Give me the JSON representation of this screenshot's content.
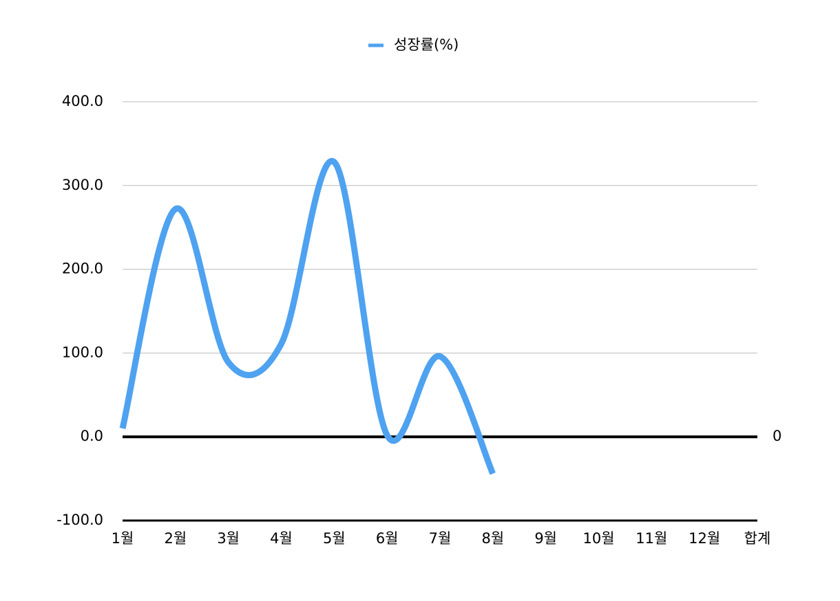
{
  "chart_data": {
    "type": "line",
    "categories": [
      "1월",
      "2월",
      "3월",
      "4월",
      "5월",
      "6월",
      "7월",
      "8월",
      "9월",
      "10월",
      "11월",
      "12월",
      "합계"
    ],
    "series": [
      {
        "name": "성장률(%)",
        "color": "#4ea2f0",
        "values": [
          10,
          272,
          89,
          111,
          328,
          2,
          96,
          -44,
          null,
          null,
          null,
          null,
          null
        ]
      }
    ],
    "ylim": [
      -100,
      400
    ],
    "yticks": [
      {
        "value": -100,
        "label": "-100.0"
      },
      {
        "value": 0,
        "label": "0.0"
      },
      {
        "value": 100,
        "label": "100.0"
      },
      {
        "value": 200,
        "label": "200.0"
      },
      {
        "value": 300,
        "label": "300.0"
      },
      {
        "value": 400,
        "label": "400.0"
      }
    ],
    "y2lim": [
      -100,
      400
    ],
    "y2ticks": [
      0
    ],
    "grid": true,
    "smooth": true,
    "legend": "top"
  }
}
